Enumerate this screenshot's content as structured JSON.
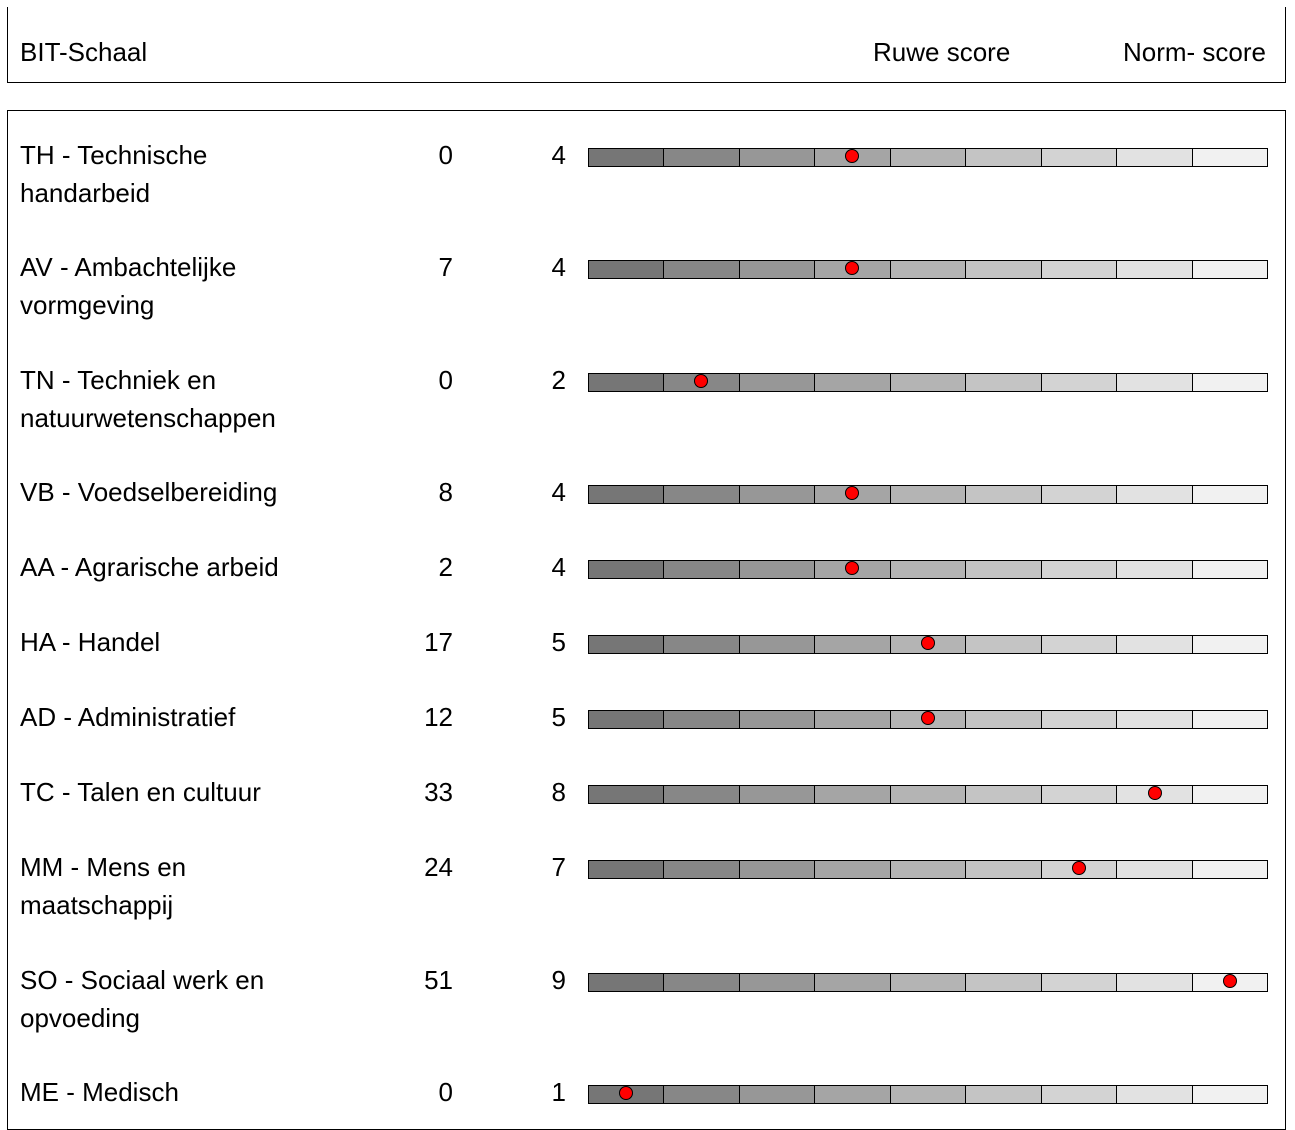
{
  "header": {
    "scale_label": "BIT-Schaal",
    "raw_label": "Ruwe score",
    "norm_label": "Norm- score"
  },
  "scale": {
    "segments": 9,
    "colors": [
      "#767676",
      "#878787",
      "#979797",
      "#a5a5a5",
      "#b4b4b4",
      "#c4c4c4",
      "#d3d3d3",
      "#e2e2e2",
      "#f1f1f1"
    ],
    "dot_color": "#ff0000"
  },
  "rows": [
    {
      "name": "TH - Technische handarbeid",
      "raw": "0",
      "norm": "4"
    },
    {
      "name": "AV - Ambachtelijke vormgeving",
      "raw": "7",
      "norm": "4"
    },
    {
      "name": "TN - Techniek en natuurwetenschappen",
      "raw": "0",
      "norm": "2"
    },
    {
      "name": "VB - Voedselbereiding",
      "raw": "8",
      "norm": "4"
    },
    {
      "name": "AA - Agrarische arbeid",
      "raw": "2",
      "norm": "4"
    },
    {
      "name": "HA - Handel",
      "raw": "17",
      "norm": "5"
    },
    {
      "name": "AD - Administratief",
      "raw": "12",
      "norm": "5"
    },
    {
      "name": "TC - Talen en cultuur",
      "raw": "33",
      "norm": "8"
    },
    {
      "name": "MM - Mens en maatschappij",
      "raw": "24",
      "norm": "7"
    },
    {
      "name": "SO - Sociaal werk en opvoeding",
      "raw": "51",
      "norm": "9"
    },
    {
      "name": "ME - Medisch",
      "raw": "0",
      "norm": "1"
    }
  ]
}
